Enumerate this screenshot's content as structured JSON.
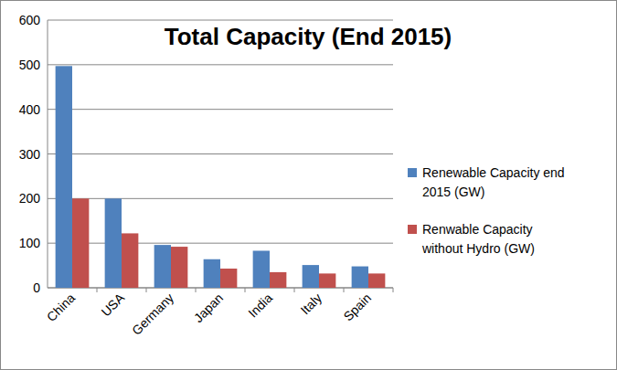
{
  "chart_data": {
    "type": "bar",
    "title": "Total Capacity (End 2015)",
    "categories": [
      "China",
      "USA",
      "Germany",
      "Japan",
      "India",
      "Italy",
      "Spain"
    ],
    "series": [
      {
        "name": "Renewable Capacity end 2015 (GW)",
        "color": "#4f81bd",
        "values": [
          497,
          200,
          96,
          64,
          83,
          51,
          48
        ]
      },
      {
        "name": "Renwable Capacity without Hydro (GW)",
        "color": "#c0504d",
        "values": [
          200,
          122,
          92,
          43,
          35,
          32,
          32
        ]
      }
    ],
    "ylim": [
      0,
      600
    ],
    "yticks": [
      0,
      100,
      200,
      300,
      400,
      500,
      600
    ],
    "grid": true,
    "legend": "right"
  }
}
